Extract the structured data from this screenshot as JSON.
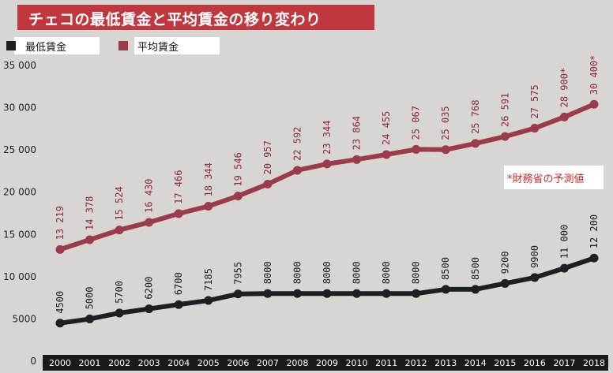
{
  "title": "チェコの最低賃金と平均賃金の移り変わり",
  "legend": {
    "minimum": "最低賃金",
    "average": "平均賃金"
  },
  "note": "*財務省の予測値",
  "colors": {
    "title_bg": "#c0373f",
    "average_line": "#9c3a4e",
    "minimum_line": "#1f1f1f",
    "axis_bar": "#1a1a1a"
  },
  "chart_data": {
    "type": "line",
    "x": [
      "2000",
      "2001",
      "2002",
      "2003",
      "2004",
      "2005",
      "2006",
      "2007",
      "2008",
      "2009",
      "2010",
      "2011",
      "2012",
      "2013",
      "2014",
      "2015",
      "2016",
      "2017",
      "2018"
    ],
    "ylim": [
      0,
      35000
    ],
    "yticks": [
      "0",
      "5000",
      "10 000",
      "15 000",
      "20 000",
      "25 000",
      "30 000",
      "35 000"
    ],
    "grid": false,
    "legend_position": "top-left",
    "series": [
      {
        "name": "平均賃金",
        "key": "average",
        "values": [
          13219,
          14378,
          15524,
          16430,
          17466,
          18344,
          19546,
          20957,
          22592,
          23344,
          23864,
          24455,
          25067,
          25035,
          25768,
          26591,
          27575,
          28900,
          30400
        ],
        "labels": [
          "13 219",
          "14 378",
          "15 524",
          "16 430",
          "17 466",
          "18 344",
          "19 546",
          "20 957",
          "22 592",
          "23 344",
          "23 864",
          "24 455",
          "25 067",
          "25 035",
          "25 768",
          "26 591",
          "27 575",
          "28 900*",
          "30 400*"
        ]
      },
      {
        "name": "最低賃金",
        "key": "minimum",
        "values": [
          4500,
          5000,
          5700,
          6200,
          6700,
          7185,
          7955,
          8000,
          8000,
          8000,
          8000,
          8000,
          8000,
          8500,
          8500,
          9200,
          9900,
          11000,
          12200
        ],
        "labels": [
          "4500",
          "5000",
          "5700",
          "6200",
          "6700",
          "7185",
          "7955",
          "8000",
          "8000",
          "8000",
          "8000",
          "8000",
          "8000",
          "8500",
          "8500",
          "9200",
          "9900",
          "11 000",
          "12 200"
        ]
      }
    ]
  }
}
